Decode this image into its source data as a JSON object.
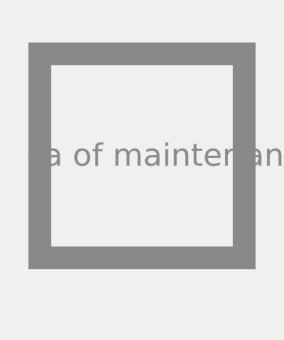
{
  "content": {
    "message_text": "ca  of mainter an"
  },
  "colors": {
    "background": "#f0f0f0",
    "frame": "#898989",
    "text": "#898989"
  }
}
